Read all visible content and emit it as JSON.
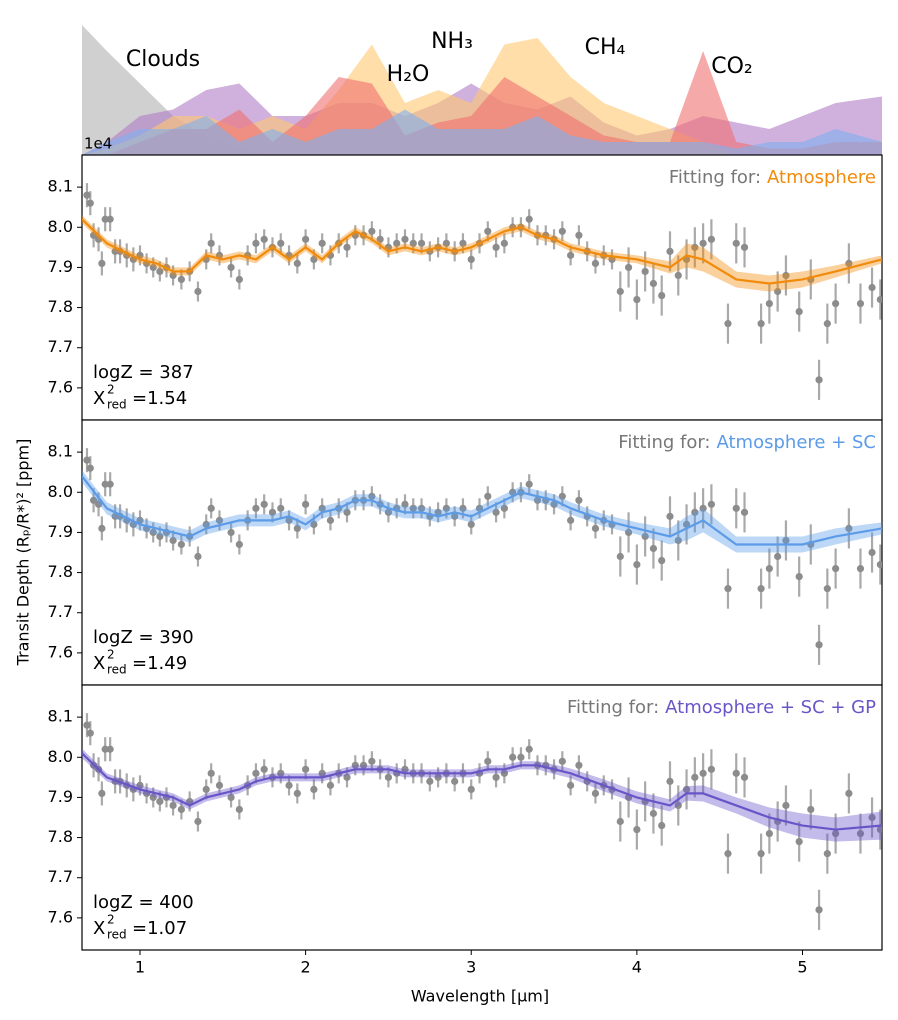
{
  "chart_data": {
    "type": "multi-panel",
    "xlabel": "Wavelength [μm]",
    "ylabel": "Transit Depth (Rₚ/R*)² [ppm]",
    "offset_text": "1e4",
    "xlim": [
      0.65,
      5.48
    ],
    "xticks": [
      1,
      2,
      3,
      4,
      5
    ],
    "ylim": [
      7.52,
      8.18
    ],
    "yticks": [
      7.6,
      7.7,
      7.8,
      7.9,
      {
        "value": 8.0,
        "label": "8.0"
      },
      8.1
    ],
    "contributions": {
      "type": "area",
      "ylim": [
        0,
        1
      ],
      "x": [
        0.65,
        0.8,
        1.0,
        1.2,
        1.4,
        1.6,
        1.8,
        2.0,
        2.2,
        2.4,
        2.6,
        2.8,
        3.0,
        3.2,
        3.4,
        3.6,
        3.8,
        4.0,
        4.2,
        4.4,
        4.6,
        4.8,
        5.0,
        5.2,
        5.48
      ],
      "series": [
        {
          "name": "Clouds",
          "color": "#c4c4c4",
          "values": [
            1.0,
            0.8,
            0.55,
            0.3,
            0.15,
            0.05,
            0,
            0,
            0,
            0,
            0,
            0,
            0,
            0,
            0,
            0,
            0,
            0,
            0,
            0,
            0,
            0,
            0,
            0,
            0
          ]
        },
        {
          "name": "NH₃",
          "color": "#b07cc6",
          "values": [
            0,
            0.1,
            0.3,
            0.35,
            0.5,
            0.55,
            0.3,
            0.3,
            0.4,
            0.4,
            0.3,
            0.4,
            0.55,
            0.4,
            0.35,
            0.45,
            0.25,
            0.15,
            0.2,
            0.3,
            0.25,
            0.2,
            0.3,
            0.4,
            0.45
          ]
        },
        {
          "name": "CH₄",
          "color": "#ffc870",
          "values": [
            0,
            0.05,
            0.15,
            0.3,
            0.3,
            0.2,
            0.3,
            0.2,
            0.5,
            0.85,
            0.4,
            0.5,
            0.4,
            0.85,
            0.9,
            0.6,
            0.4,
            0.3,
            0.2,
            0.1,
            0,
            0,
            0,
            0,
            0
          ]
        },
        {
          "name": "CO₂",
          "color": "#f07070",
          "values": [
            0,
            0,
            0.1,
            0.2,
            0.2,
            0.35,
            0.1,
            0.3,
            0.6,
            0.55,
            0.15,
            0.25,
            0.3,
            0.6,
            0.45,
            0.3,
            0.15,
            0.1,
            0.1,
            0.8,
            0.1,
            0.05,
            0.05,
            0.1,
            0.1
          ]
        },
        {
          "name": "H₂O",
          "color": "#7fb0f0",
          "values": [
            0,
            0.1,
            0.2,
            0.2,
            0.3,
            0.1,
            0.2,
            0.1,
            0.2,
            0.2,
            0.35,
            0.2,
            0.2,
            0.2,
            0.3,
            0.15,
            0.1,
            0.1,
            0.1,
            0.1,
            0.05,
            0.1,
            0.1,
            0.2,
            0.1
          ]
        }
      ]
    },
    "observations": {
      "color": "#8c8c8c",
      "x": [
        0.68,
        0.7,
        0.72,
        0.75,
        0.77,
        0.79,
        0.82,
        0.85,
        0.88,
        0.92,
        0.96,
        1.0,
        1.04,
        1.08,
        1.12,
        1.16,
        1.2,
        1.25,
        1.3,
        1.35,
        1.4,
        1.43,
        1.48,
        1.55,
        1.6,
        1.65,
        1.7,
        1.75,
        1.8,
        1.85,
        1.9,
        1.95,
        2.0,
        2.05,
        2.1,
        2.15,
        2.2,
        2.25,
        2.3,
        2.35,
        2.4,
        2.45,
        2.5,
        2.55,
        2.6,
        2.65,
        2.7,
        2.75,
        2.8,
        2.85,
        2.9,
        2.95,
        3.0,
        3.05,
        3.1,
        3.15,
        3.2,
        3.25,
        3.3,
        3.35,
        3.4,
        3.45,
        3.5,
        3.55,
        3.6,
        3.65,
        3.7,
        3.75,
        3.8,
        3.85,
        3.9,
        3.95,
        4.0,
        4.05,
        4.1,
        4.15,
        4.2,
        4.25,
        4.3,
        4.35,
        4.4,
        4.45,
        4.55,
        4.6,
        4.65,
        4.75,
        4.8,
        4.85,
        4.9,
        4.98,
        5.05,
        5.1,
        5.15,
        5.2,
        5.28,
        5.35,
        5.42,
        5.47
      ],
      "values": [
        8.08,
        8.06,
        7.98,
        7.97,
        7.91,
        8.02,
        8.02,
        7.94,
        7.94,
        7.93,
        7.92,
        7.93,
        7.91,
        7.9,
        7.89,
        7.9,
        7.88,
        7.87,
        7.89,
        7.84,
        7.92,
        7.96,
        7.93,
        7.9,
        7.87,
        7.93,
        7.96,
        7.97,
        7.95,
        7.96,
        7.93,
        7.91,
        7.97,
        7.92,
        7.96,
        7.93,
        7.96,
        7.95,
        7.98,
        7.98,
        7.99,
        7.97,
        7.95,
        7.96,
        7.97,
        7.96,
        7.96,
        7.94,
        7.95,
        7.96,
        7.94,
        7.96,
        7.92,
        7.96,
        7.99,
        7.95,
        7.96,
        8.0,
        8.0,
        8.02,
        7.98,
        7.98,
        7.97,
        7.99,
        7.93,
        7.98,
        7.94,
        7.91,
        7.93,
        7.92,
        7.84,
        7.9,
        7.82,
        7.89,
        7.86,
        7.83,
        7.94,
        7.88,
        7.92,
        7.95,
        7.96,
        7.97,
        7.76,
        7.96,
        7.95,
        7.76,
        7.81,
        7.84,
        7.88,
        7.79,
        7.87,
        7.62,
        7.76,
        7.81,
        7.91,
        7.81,
        7.85,
        7.82
      ],
      "errors": [
        0.03,
        0.03,
        0.03,
        0.03,
        0.03,
        0.03,
        0.03,
        0.03,
        0.03,
        0.03,
        0.03,
        0.025,
        0.025,
        0.025,
        0.025,
        0.025,
        0.025,
        0.025,
        0.025,
        0.025,
        0.025,
        0.025,
        0.025,
        0.025,
        0.025,
        0.025,
        0.025,
        0.025,
        0.025,
        0.025,
        0.025,
        0.025,
        0.025,
        0.025,
        0.025,
        0.025,
        0.025,
        0.025,
        0.025,
        0.025,
        0.025,
        0.025,
        0.025,
        0.025,
        0.025,
        0.025,
        0.025,
        0.025,
        0.025,
        0.025,
        0.025,
        0.025,
        0.025,
        0.025,
        0.025,
        0.025,
        0.025,
        0.025,
        0.025,
        0.025,
        0.025,
        0.025,
        0.025,
        0.025,
        0.025,
        0.025,
        0.025,
        0.025,
        0.025,
        0.025,
        0.05,
        0.05,
        0.05,
        0.05,
        0.05,
        0.05,
        0.05,
        0.05,
        0.05,
        0.05,
        0.05,
        0.05,
        0.05,
        0.05,
        0.05,
        0.05,
        0.05,
        0.05,
        0.05,
        0.05,
        0.05,
        0.05,
        0.05,
        0.05,
        0.05,
        0.05,
        0.05,
        0.05
      ]
    },
    "model_x": [
      0.65,
      0.8,
      1.0,
      1.1,
      1.2,
      1.3,
      1.4,
      1.5,
      1.6,
      1.7,
      1.8,
      1.9,
      2.0,
      2.1,
      2.2,
      2.3,
      2.4,
      2.5,
      2.6,
      2.7,
      2.8,
      2.9,
      3.0,
      3.1,
      3.2,
      3.3,
      3.4,
      3.5,
      3.6,
      3.8,
      4.0,
      4.2,
      4.3,
      4.4,
      4.6,
      4.8,
      5.0,
      5.2,
      5.48
    ],
    "panels": [
      {
        "type": "line",
        "fit_prefix": "Fitting for:",
        "logz": "logZ = 387",
        "chi_symbol": "X",
        "chi_sup": "2",
        "chi_sub": "red",
        "chi_value": "=1.54",
        "series": [
          {
            "name": "Atmosphere",
            "color": "#f28a0a",
            "values": [
              8.02,
              7.96,
              7.92,
              7.91,
              7.89,
              7.89,
              7.93,
              7.92,
              7.93,
              7.92,
              7.95,
              7.92,
              7.95,
              7.92,
              7.96,
              7.99,
              7.97,
              7.94,
              7.95,
              7.94,
              7.95,
              7.94,
              7.95,
              7.97,
              7.99,
              8.0,
              7.98,
              7.97,
              7.95,
              7.93,
              7.92,
              7.9,
              7.93,
              7.92,
              7.87,
              7.86,
              7.87,
              7.89,
              7.92
            ],
            "uncertainty": [
              0.01,
              0.01,
              0.01,
              0.01,
              0.01,
              0.01,
              0.01,
              0.01,
              0.01,
              0.01,
              0.01,
              0.01,
              0.01,
              0.01,
              0.01,
              0.01,
              0.01,
              0.01,
              0.01,
              0.01,
              0.01,
              0.01,
              0.01,
              0.01,
              0.01,
              0.01,
              0.01,
              0.01,
              0.01,
              0.01,
              0.01,
              0.015,
              0.03,
              0.03,
              0.02,
              0.02,
              0.02,
              0.015,
              0.01
            ]
          }
        ]
      },
      {
        "type": "line",
        "fit_prefix": "Fitting for:",
        "logz": "logZ = 390",
        "chi_symbol": "X",
        "chi_sup": "2",
        "chi_sub": "red",
        "chi_value": "=1.49",
        "series": [
          {
            "name": "Atmosphere + SC",
            "color": "#5b9be8",
            "values": [
              8.04,
              7.96,
              7.92,
              7.91,
              7.9,
              7.89,
              7.91,
              7.92,
              7.93,
              7.93,
              7.93,
              7.94,
              7.92,
              7.95,
              7.96,
              7.98,
              7.98,
              7.96,
              7.95,
              7.95,
              7.94,
              7.95,
              7.94,
              7.96,
              7.98,
              8.0,
              7.99,
              7.98,
              7.96,
              7.93,
              7.91,
              7.89,
              7.91,
              7.93,
              7.87,
              7.87,
              7.87,
              7.89,
              7.91
            ],
            "uncertainty": [
              0.015,
              0.015,
              0.015,
              0.015,
              0.015,
              0.015,
              0.015,
              0.015,
              0.015,
              0.015,
              0.015,
              0.015,
              0.015,
              0.015,
              0.015,
              0.015,
              0.015,
              0.015,
              0.015,
              0.015,
              0.015,
              0.015,
              0.015,
              0.015,
              0.015,
              0.015,
              0.015,
              0.015,
              0.015,
              0.015,
              0.015,
              0.02,
              0.03,
              0.03,
              0.02,
              0.02,
              0.02,
              0.02,
              0.015
            ]
          }
        ]
      },
      {
        "type": "line",
        "fit_prefix": "Fitting for:",
        "logz": "logZ = 400",
        "chi_symbol": "X",
        "chi_sup": "2",
        "chi_sub": "red",
        "chi_value": "=1.07",
        "series": [
          {
            "name": "Atmosphere + SC + GP",
            "color": "#6a55c8",
            "values": [
              8.01,
              7.95,
              7.92,
              7.91,
              7.9,
              7.88,
              7.9,
              7.91,
              7.92,
              7.94,
              7.95,
              7.95,
              7.95,
              7.95,
              7.96,
              7.97,
              7.97,
              7.97,
              7.96,
              7.96,
              7.96,
              7.96,
              7.96,
              7.97,
              7.97,
              7.98,
              7.98,
              7.97,
              7.96,
              7.93,
              7.9,
              7.88,
              7.91,
              7.91,
              7.88,
              7.85,
              7.83,
              7.82,
              7.83
            ],
            "uncertainty": [
              0.012,
              0.01,
              0.01,
              0.01,
              0.01,
              0.01,
              0.01,
              0.01,
              0.01,
              0.01,
              0.01,
              0.01,
              0.01,
              0.01,
              0.01,
              0.01,
              0.01,
              0.01,
              0.01,
              0.01,
              0.01,
              0.01,
              0.01,
              0.01,
              0.01,
              0.01,
              0.01,
              0.012,
              0.012,
              0.015,
              0.015,
              0.015,
              0.018,
              0.02,
              0.02,
              0.025,
              0.03,
              0.03,
              0.035
            ]
          }
        ]
      }
    ]
  }
}
